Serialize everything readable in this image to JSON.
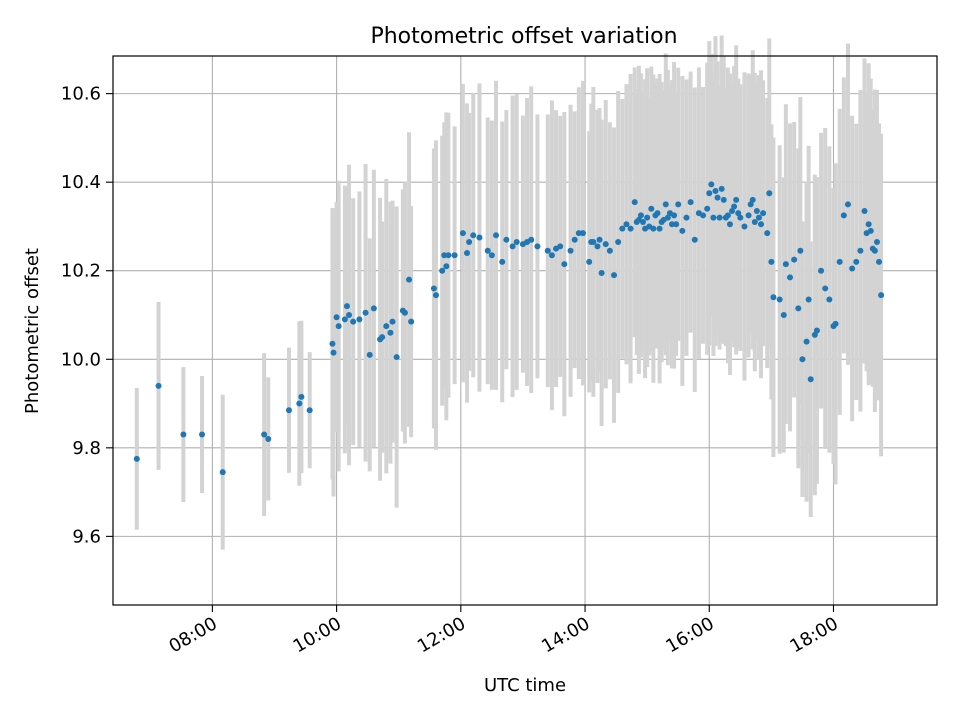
{
  "chart_data": {
    "type": "scatter",
    "title": "Photometric offset variation",
    "xlabel": "UTC time",
    "ylabel": "Photometric offset",
    "x_unit": "UTC hours",
    "xlim": [
      "06:24",
      "19:40"
    ],
    "ylim": [
      9.445,
      10.685
    ],
    "x_ticks": [
      "08:00",
      "10:00",
      "12:00",
      "14:00",
      "16:00",
      "18:00"
    ],
    "y_ticks": [
      "9.6",
      "9.8",
      "10.0",
      "10.2",
      "10.4",
      "10.6"
    ],
    "grid": true,
    "colors": {
      "points": "#1f77b4",
      "error_bars": "#d3d3d3",
      "grid": "#b0b0b0"
    },
    "series": [
      {
        "x": [
          "06:47",
          "07:08",
          "07:32",
          "07:50",
          "08:10",
          "08:50",
          "08:54",
          "09:14",
          "09:24",
          "09:26",
          "09:34",
          "09:56",
          "09:57",
          "10:00",
          "10:02",
          "10:08",
          "10:10",
          "10:12",
          "10:16",
          "10:22",
          "10:28",
          "10:32",
          "10:36",
          "10:42",
          "10:44",
          "10:48",
          "10:52",
          "10:54",
          "10:58",
          "11:04",
          "11:06",
          "11:10",
          "11:12",
          "11:34",
          "11:36",
          "11:42",
          "11:44",
          "11:46",
          "11:48",
          "11:54",
          "12:02",
          "12:06",
          "12:08",
          "12:12",
          "12:18",
          "12:26",
          "12:30",
          "12:34",
          "12:40",
          "12:44",
          "12:50",
          "12:54",
          "13:00",
          "13:04",
          "13:08",
          "13:14",
          "13:24",
          "13:28",
          "13:32",
          "13:36",
          "13:40",
          "13:46",
          "13:50",
          "13:54",
          "13:58",
          "14:04",
          "14:06",
          "14:08",
          "14:12",
          "14:14",
          "14:16",
          "14:20",
          "14:24",
          "14:28",
          "14:32",
          "14:36",
          "14:40",
          "14:44",
          "14:48",
          "14:50",
          "14:52",
          "14:54",
          "14:56",
          "14:58",
          "15:00",
          "15:02",
          "15:04",
          "15:06",
          "15:08",
          "15:10",
          "15:12",
          "15:14",
          "15:16",
          "15:18",
          "15:20",
          "15:22",
          "15:24",
          "15:26",
          "15:28",
          "15:30",
          "15:34",
          "15:38",
          "15:42",
          "15:46",
          "15:50",
          "15:54",
          "15:58",
          "16:00",
          "16:02",
          "16:04",
          "16:06",
          "16:08",
          "16:10",
          "16:12",
          "16:14",
          "16:16",
          "16:18",
          "16:20",
          "16:22",
          "16:24",
          "16:26",
          "16:28",
          "16:30",
          "16:34",
          "16:38",
          "16:40",
          "16:42",
          "16:44",
          "16:46",
          "16:48",
          "16:50",
          "16:52",
          "16:56",
          "16:58",
          "17:00",
          "17:02",
          "17:08",
          "17:12",
          "17:14",
          "17:18",
          "17:22",
          "17:26",
          "17:28",
          "17:30",
          "17:34",
          "17:36",
          "17:38",
          "17:42",
          "17:44",
          "17:48",
          "17:52",
          "17:56",
          "18:00",
          "18:02",
          "18:06",
          "18:10",
          "18:14",
          "18:18",
          "18:22",
          "18:26",
          "18:30",
          "18:32",
          "18:34",
          "18:36",
          "18:38",
          "18:40",
          "18:42",
          "18:44",
          "18:46"
        ],
        "y": [
          9.775,
          9.94,
          9.83,
          9.83,
          9.745,
          9.83,
          9.82,
          9.885,
          9.9,
          9.915,
          9.885,
          10.035,
          10.015,
          10.095,
          10.075,
          10.09,
          10.12,
          10.1,
          10.085,
          10.09,
          10.105,
          10.01,
          10.115,
          10.045,
          10.05,
          10.075,
          10.06,
          10.085,
          10.005,
          10.11,
          10.105,
          10.18,
          10.085,
          10.16,
          10.145,
          10.2,
          10.235,
          10.21,
          10.235,
          10.235,
          10.285,
          10.24,
          10.265,
          10.28,
          10.275,
          10.245,
          10.235,
          10.28,
          10.22,
          10.27,
          10.255,
          10.265,
          10.26,
          10.265,
          10.27,
          10.255,
          10.245,
          10.235,
          10.25,
          10.255,
          10.215,
          10.245,
          10.27,
          10.285,
          10.285,
          10.22,
          10.265,
          10.265,
          10.255,
          10.27,
          10.195,
          10.26,
          10.245,
          10.19,
          10.265,
          10.295,
          10.305,
          10.295,
          10.355,
          10.31,
          10.315,
          10.325,
          10.31,
          10.295,
          10.32,
          10.3,
          10.34,
          10.295,
          10.325,
          10.33,
          10.295,
          10.31,
          10.315,
          10.35,
          10.32,
          10.33,
          10.305,
          10.325,
          10.305,
          10.35,
          10.29,
          10.32,
          10.355,
          10.27,
          10.33,
          10.325,
          10.34,
          10.375,
          10.395,
          10.32,
          10.38,
          10.365,
          10.32,
          10.385,
          10.36,
          10.32,
          10.325,
          10.305,
          10.335,
          10.345,
          10.36,
          10.33,
          10.32,
          10.3,
          10.325,
          10.35,
          10.36,
          10.31,
          10.335,
          10.32,
          10.305,
          10.33,
          10.285,
          10.375,
          10.22,
          10.14,
          10.135,
          10.1,
          10.215,
          10.185,
          10.225,
          10.115,
          10.245,
          10.0,
          10.04,
          10.135,
          9.955,
          10.055,
          10.065,
          10.2,
          10.16,
          10.135,
          10.075,
          10.08,
          10.22,
          10.325,
          10.35,
          10.205,
          10.22,
          10.245,
          10.335,
          10.285,
          10.305,
          10.29,
          10.25,
          10.245,
          10.265,
          10.22,
          10.145
        ]
      }
    ]
  }
}
